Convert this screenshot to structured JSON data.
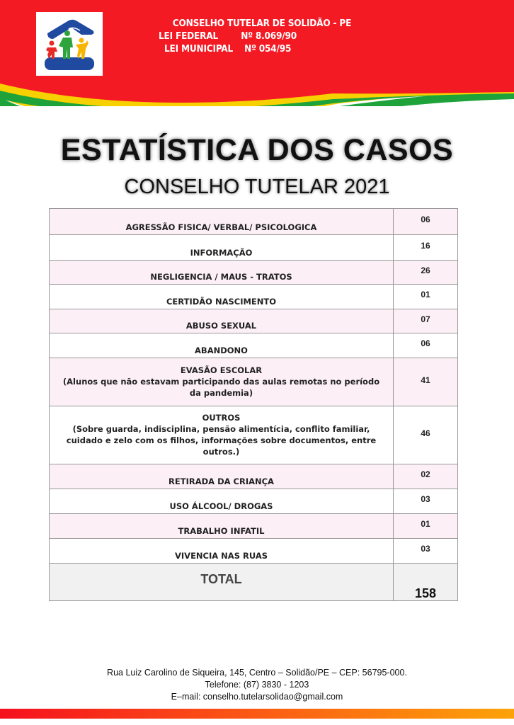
{
  "header": {
    "lines": [
      "CONSELHO TUTELAR DE SOLIDÃO - PE",
      "LEI FEDERAL        Nº 8.069/90",
      "LEI MUNICIPAL    Nº 054/95"
    ],
    "colors": {
      "red": "#f41a24",
      "yellow": "#f7d000",
      "green": "#1ea33a"
    }
  },
  "title": "ESTATÍSTICA DOS CASOS",
  "subtitle": "CONSELHO TUTELAR 2021",
  "table": {
    "rows": [
      {
        "label": "AGRESSÃO FISICA/ VERBAL/ PSICOLOGICA",
        "value": "06"
      },
      {
        "label": "INFORMAÇÃO",
        "value": "16"
      },
      {
        "label": "NEGLIGENCIA / MAUS - TRATOS",
        "value": "26"
      },
      {
        "label": "CERTIDÃO NASCIMENTO",
        "value": "01"
      },
      {
        "label": "ABUSO SEXUAL",
        "value": "07"
      },
      {
        "label": "ABANDONO",
        "value": "06"
      },
      {
        "label": "EVASÃO ESCOLAR",
        "detail": "(Alunos que não estavam participando das aulas remotas no período da pandemia)",
        "value": "41"
      },
      {
        "label": "OUTROS",
        "detail": "(Sobre guarda, indisciplina, pensão alimentícia, conflito familiar, cuidado e zelo com os filhos, informações sobre documentos, entre outros.)",
        "value": "46"
      },
      {
        "label": "RETIRADA DA CRIANÇA",
        "value": "02"
      },
      {
        "label": "USO ÁLCOOL/ DROGAS",
        "value": "03"
      },
      {
        "label": "TRABALHO INFATIL",
        "value": "01"
      },
      {
        "label": "VIVENCIA NAS RUAS",
        "value": "03"
      }
    ],
    "total_label": "TOTAL",
    "total_value": "158"
  },
  "footer": {
    "address": "Rua Luiz Carolino de Siqueira, 145, Centro – Solidão/PE – CEP: 56795-000.",
    "phone": "Telefone: (87) 3830 - 1203",
    "email": "E–mail: conselho.tutelarsolidao@gmail.com"
  }
}
